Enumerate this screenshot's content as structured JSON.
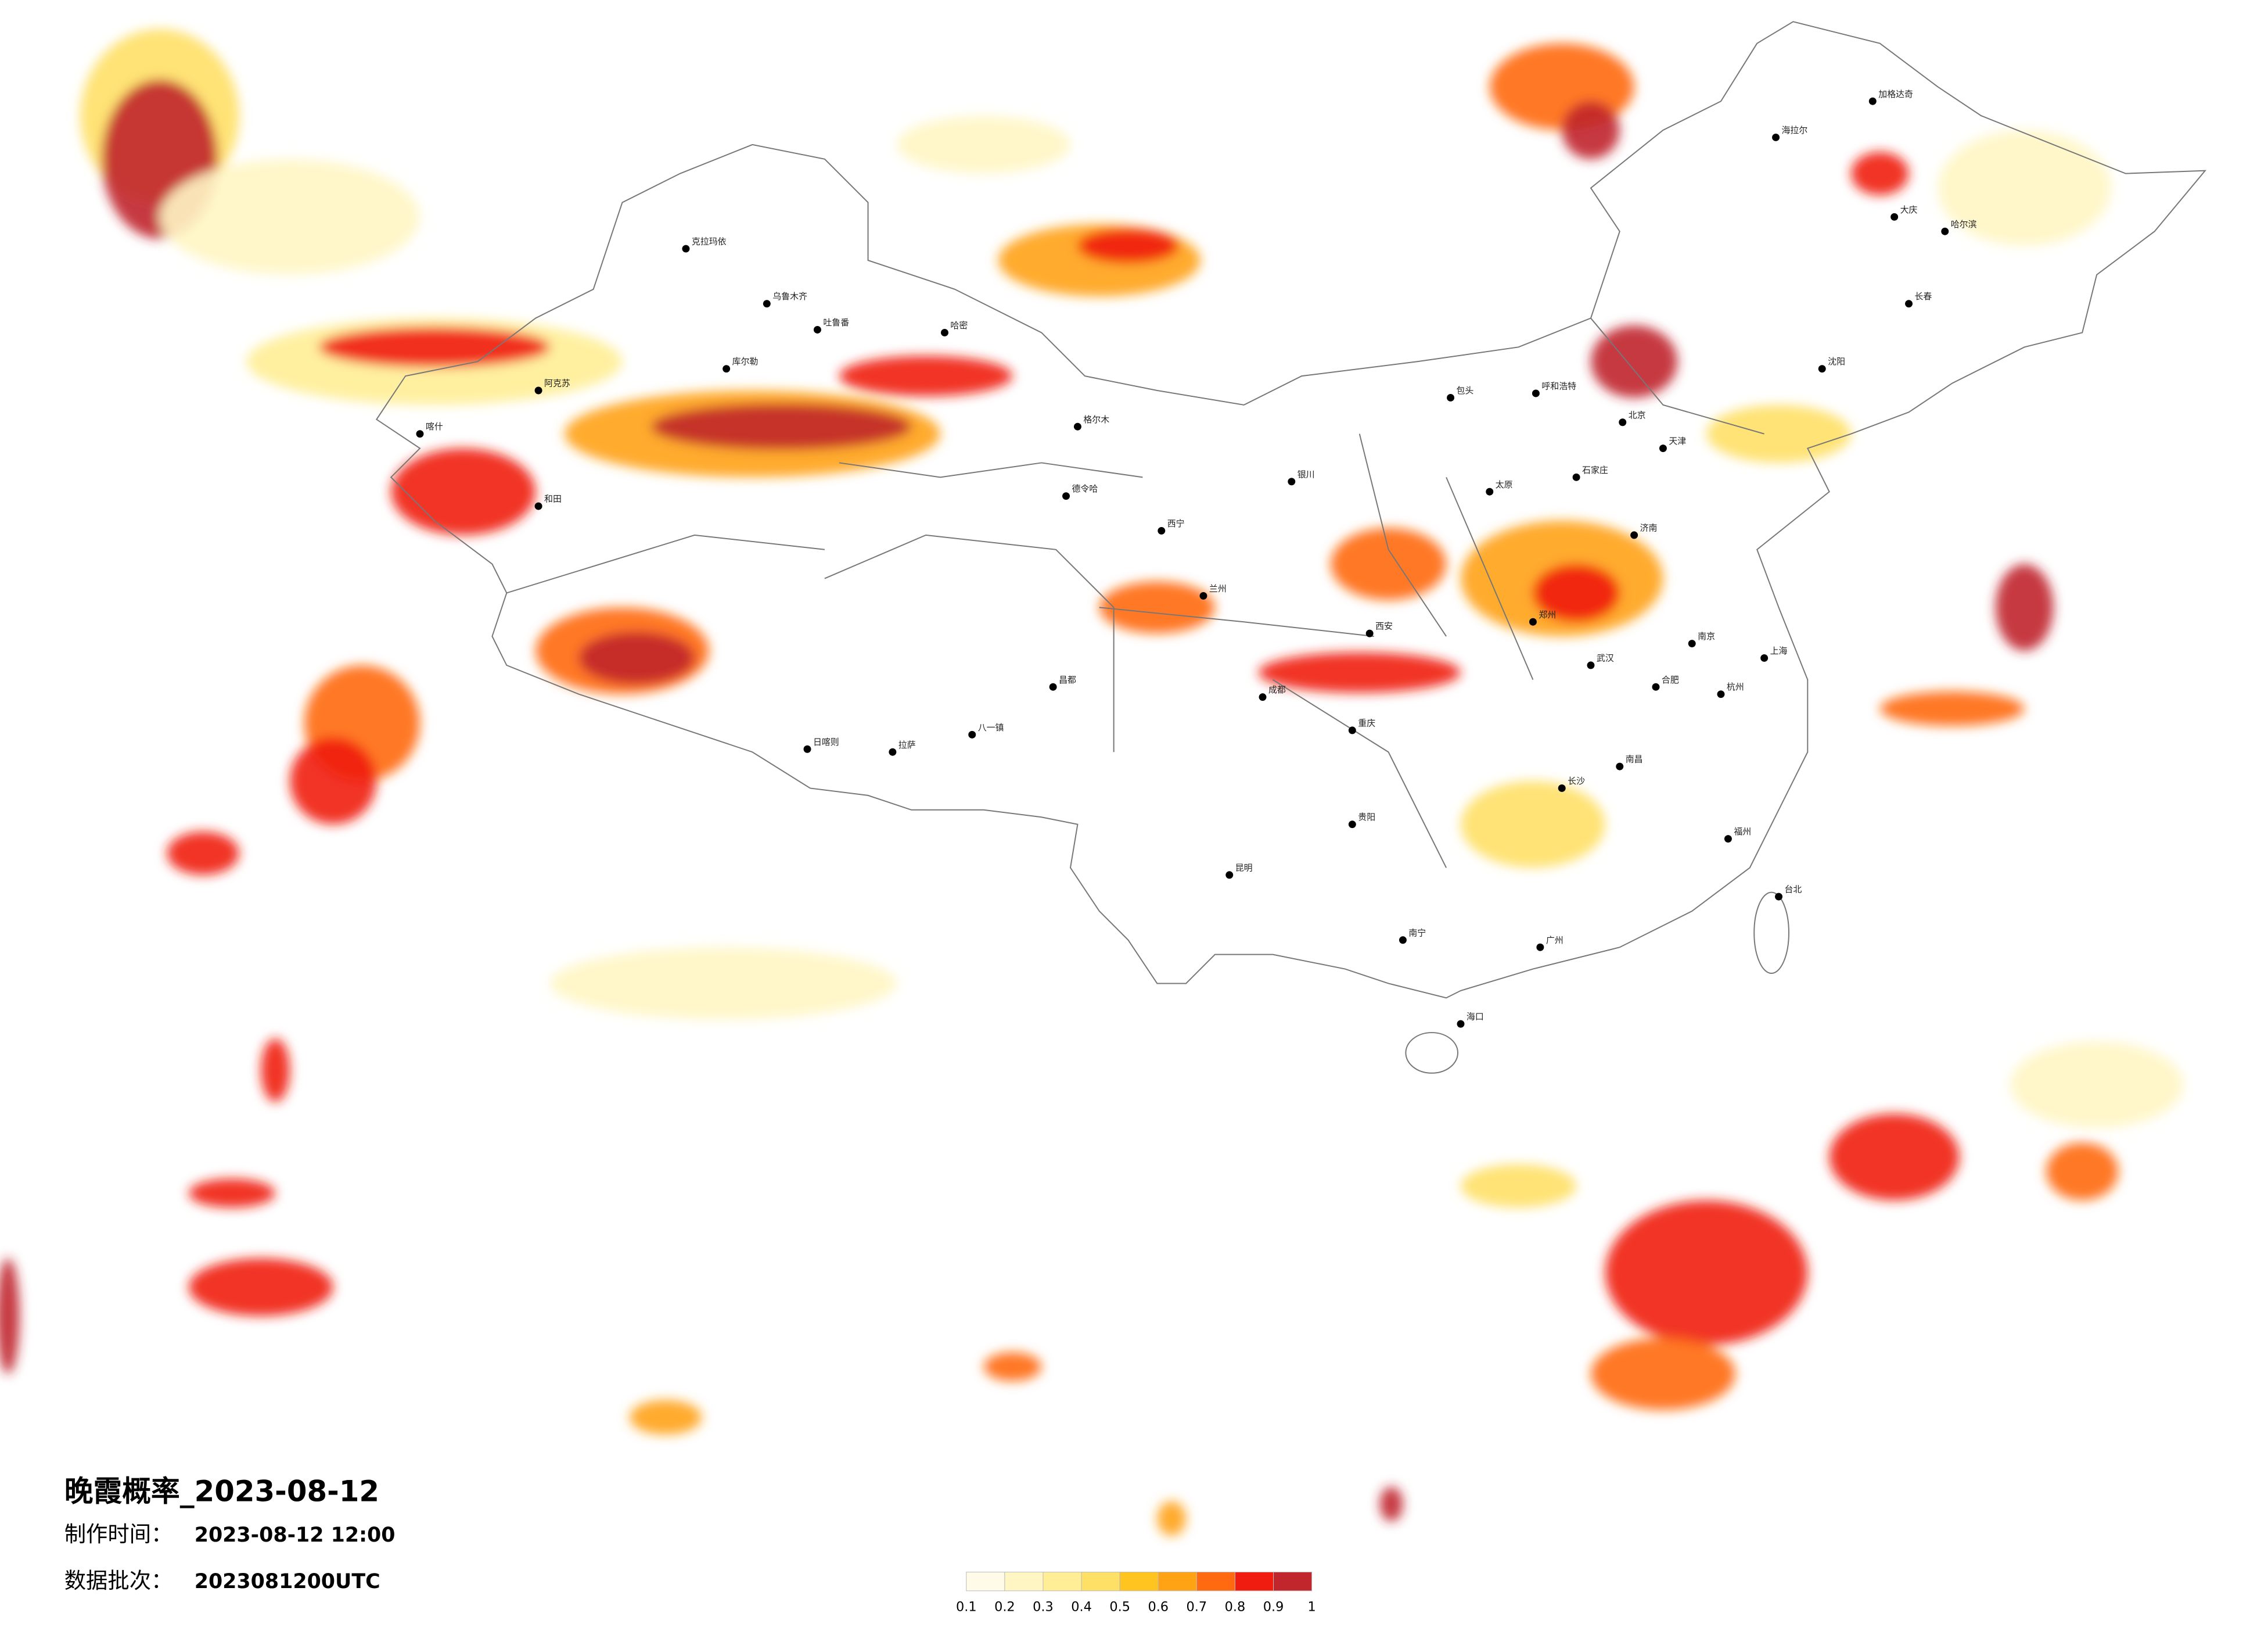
{
  "info": {
    "title": "晚霞概率_2023-08-12",
    "made_label": "制作时间：",
    "made_time": "2023-08-12 12:00",
    "batch_label": "数据批次：",
    "batch": "2023081200UTC"
  },
  "legend": {
    "ticks": [
      0.1,
      0.2,
      0.3,
      0.4,
      0.5,
      0.6,
      0.7,
      0.8,
      0.9,
      1
    ],
    "colors": [
      "#fffbe8",
      "#fff6c4",
      "#ffee96",
      "#ffe066",
      "#ffc420",
      "#ffa214",
      "#ff6a10",
      "#f01c10",
      "#c0262b"
    ]
  },
  "cities": [
    "克拉玛依",
    "乌鲁木齐",
    "吐鲁番",
    "哈密",
    "库尔勒",
    "阿克苏",
    "喀什",
    "和田",
    "格尔木",
    "德令哈",
    "西宁",
    "兰州",
    "银川",
    "呼和浩特",
    "包头",
    "北京",
    "天津",
    "石家庄",
    "太原",
    "济南",
    "郑州",
    "西安",
    "成都",
    "重庆",
    "贵阳",
    "昆明",
    "南宁",
    "广州",
    "长沙",
    "武汉",
    "南昌",
    "杭州",
    "上海",
    "南京",
    "合肥",
    "福州",
    "沈阳",
    "长春",
    "哈尔滨",
    "海口",
    "拉萨",
    "日喀则",
    "八一镇",
    "昌都",
    "海拉尔",
    "加格达奇",
    "台北",
    "大庆"
  ]
}
